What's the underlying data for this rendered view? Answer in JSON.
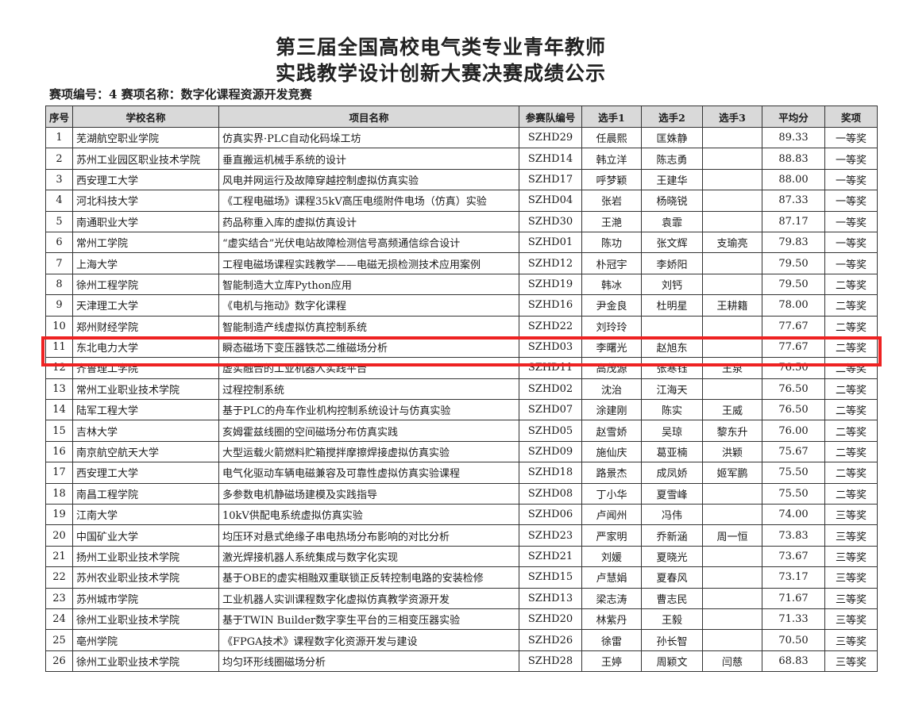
{
  "document": {
    "title_line1": "第三届全国高校电气类专业青年教师",
    "title_line2": "实践教学设计创新大赛决赛成绩公示",
    "subtitle": "赛项编号：4 赛项名称：数字化课程资源开发竞赛",
    "highlight_color": "#ee2222",
    "highlighted_row": 11
  },
  "table": {
    "headers": [
      "序号",
      "学校名称",
      "项目名称",
      "参赛队编号",
      "选手1",
      "选手2",
      "选手3",
      "平均分",
      "奖项"
    ],
    "rows": [
      [
        "1",
        "芜湖航空职业学院",
        "仿真实界·PLC自动化码垛工坊",
        "SZHD29",
        "任晨熙",
        "匡姝静",
        "",
        "89.33",
        "一等奖"
      ],
      [
        "2",
        "苏州工业园区职业技术学院",
        "垂直搬运机械手系统的设计",
        "SZHD14",
        "韩立洋",
        "陈志勇",
        "",
        "88.83",
        "一等奖"
      ],
      [
        "3",
        "西安理工大学",
        "风电并网运行及故障穿越控制虚拟仿真实验",
        "SZHD17",
        "呼梦颖",
        "王建华",
        "",
        "88.00",
        "一等奖"
      ],
      [
        "4",
        "河北科技大学",
        "《工程电磁场》课程35kV高压电缆附件电场（仿真）实验",
        "SZHD04",
        "张岩",
        "杨晓锐",
        "",
        "87.33",
        "一等奖"
      ],
      [
        "5",
        "南通职业大学",
        "药品称重入库的虚拟仿真设计",
        "SZHD30",
        "王滟",
        "袁霏",
        "",
        "87.17",
        "一等奖"
      ],
      [
        "6",
        "常州工学院",
        "“虚实结合”光伏电站故障检测信号高频通信综合设计",
        "SZHD01",
        "陈功",
        "张文辉",
        "支瑜亮",
        "79.83",
        "一等奖"
      ],
      [
        "7",
        "上海大学",
        "工程电磁场课程实践教学——电磁无损检测技术应用案例",
        "SZHD12",
        "朴冠宇",
        "李娇阳",
        "",
        "79.50",
        "一等奖"
      ],
      [
        "8",
        "徐州工程学院",
        "智能制造大立库Python应用",
        "SZHD19",
        "韩冰",
        "刘钙",
        "",
        "79.50",
        "二等奖"
      ],
      [
        "9",
        "天津理工大学",
        "《电机与拖动》数字化课程",
        "SZHD16",
        "尹金良",
        "杜明星",
        "王耕籍",
        "78.00",
        "二等奖"
      ],
      [
        "10",
        "郑州财经学院",
        "智能制造产线虚拟仿真控制系统",
        "SZHD22",
        "刘玲玲",
        "",
        "",
        "77.67",
        "二等奖"
      ],
      [
        "11",
        "东北电力大学",
        "瞬态磁场下变压器铁芯二维磁场分析",
        "SZHD03",
        "李曙光",
        "赵旭东",
        "",
        "77.67",
        "二等奖"
      ],
      [
        "12",
        "齐鲁理工学院",
        "虚实融合的工业机器人实践平台",
        "SZHD11",
        "高茂源",
        "张寒钰",
        "王泉",
        "76.50",
        "二等奖"
      ],
      [
        "13",
        "常州工业职业技术学院",
        "过程控制系统",
        "SZHD02",
        "沈治",
        "江海天",
        "",
        "76.50",
        "二等奖"
      ],
      [
        "14",
        "陆军工程大学",
        "基于PLC的舟车作业机构控制系统设计与仿真实验",
        "SZHD07",
        "涂建刚",
        "陈实",
        "王威",
        "76.50",
        "二等奖"
      ],
      [
        "15",
        "吉林大学",
        "亥姆霍兹线圈的空间磁场分布仿真实践",
        "SZHD05",
        "赵雪娇",
        "吴琼",
        "黎东升",
        "76.00",
        "二等奖"
      ],
      [
        "16",
        "南京航空航天大学",
        "大型运载火箭燃料贮箱搅拌摩擦焊接虚拟仿真实验",
        "SZHD09",
        "施仙庆",
        "葛亚楠",
        "洪颖",
        "75.67",
        "二等奖"
      ],
      [
        "17",
        "西安理工大学",
        "电气化驱动车辆电磁兼容及可靠性虚拟仿真实验课程",
        "SZHD18",
        "路景杰",
        "成凤娇",
        "姬军鹏",
        "75.50",
        "二等奖"
      ],
      [
        "18",
        "南昌工程学院",
        "多参数电机静磁场建模及实践指导",
        "SZHD08",
        "丁小华",
        "夏雪峰",
        "",
        "75.50",
        "二等奖"
      ],
      [
        "19",
        "江南大学",
        "10kV供配电系统虚拟仿真实验",
        "SZHD06",
        "卢闻州",
        "冯伟",
        "",
        "74.00",
        "三等奖"
      ],
      [
        "20",
        "中国矿业大学",
        "均压环对悬式绝缘子串电热场分布影响的对比分析",
        "SZHD23",
        "严家明",
        "乔新涵",
        "周一恒",
        "73.83",
        "三等奖"
      ],
      [
        "21",
        "扬州工业职业技术学院",
        "激光焊接机器人系统集成与数字化实现",
        "SZHD21",
        "刘媛",
        "夏晓光",
        "",
        "73.67",
        "三等奖"
      ],
      [
        "22",
        "苏州农业职业技术学院",
        "基于OBE的虚实相融双重联锁正反转控制电路的安装检修",
        "SZHD15",
        "卢慧娟",
        "夏春风",
        "",
        "73.17",
        "三等奖"
      ],
      [
        "23",
        "苏州城市学院",
        "工业机器人实训课程数字化虚拟仿真教学资源开发",
        "SZHD13",
        "梁志涛",
        "曹志民",
        "",
        "71.67",
        "三等奖"
      ],
      [
        "24",
        "徐州工业职业技术学院",
        "基于TWIN Builder数字孪生平台的三相变压器实验",
        "SZHD20",
        "林紫丹",
        "王毅",
        "",
        "71.33",
        "三等奖"
      ],
      [
        "25",
        "亳州学院",
        "《FPGA技术》课程数字化资源开发与建设",
        "SZHD26",
        "徐雷",
        "孙长智",
        "",
        "70.50",
        "三等奖"
      ],
      [
        "26",
        "徐州工业职业技术学院",
        "均匀环形线圈磁场分析",
        "SZHD28",
        "王婷",
        "周颖文",
        "闫慈",
        "68.83",
        "三等奖"
      ]
    ]
  }
}
